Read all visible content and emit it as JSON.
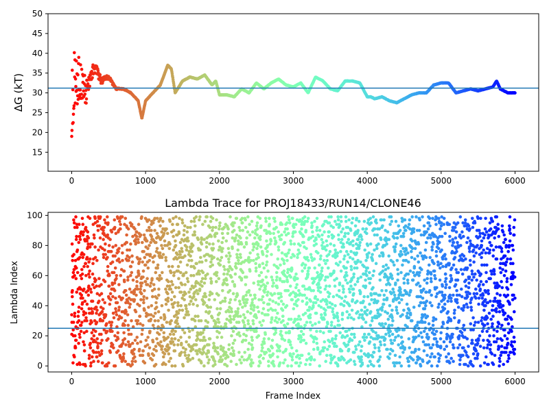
{
  "chart_data": [
    {
      "type": "scatter",
      "title": "",
      "xlabel": "",
      "ylabel": "ΔG (kT)",
      "xlim": [
        -320,
        6320
      ],
      "ylim": [
        10.2,
        50.0
      ],
      "xticks": [
        0,
        1000,
        2000,
        3000,
        4000,
        5000,
        6000
      ],
      "yticks": [
        15,
        20,
        25,
        30,
        35,
        40,
        45,
        50
      ],
      "reference_line": 31.2,
      "colormap": "rainbow (early frames red, late frames violet)",
      "grid": false,
      "series": [
        {
          "x": [
            0,
            100,
            200,
            300,
            400,
            500,
            600,
            700,
            800,
            900,
            950,
            1000,
            1100,
            1200,
            1300,
            1350,
            1400,
            1500,
            1600,
            1700,
            1800,
            1900,
            1950,
            2000,
            2100,
            2200,
            2300,
            2400,
            2500,
            2600,
            2700,
            2800,
            2900,
            3000,
            3100,
            3200,
            3300,
            3400,
            3500,
            3600,
            3700,
            3800,
            3900,
            4000,
            4050,
            4100,
            4200,
            4300,
            4400,
            4500,
            4600,
            4700,
            4800,
            4900,
            5000,
            5100,
            5200,
            5300,
            5400,
            5500,
            5600,
            5700,
            5750,
            5800,
            5900,
            6000
          ],
          "values": [
            30,
            34,
            30,
            37,
            33,
            34,
            31,
            31,
            30,
            28,
            23.5,
            28,
            30,
            32,
            37,
            36,
            30,
            33,
            34,
            33.5,
            34.5,
            32,
            33,
            29.5,
            29.5,
            29,
            31,
            30,
            32.5,
            31,
            32.5,
            33.5,
            32,
            31.5,
            32.5,
            30,
            34,
            33,
            31,
            30.5,
            33,
            33,
            32.5,
            29,
            29,
            28.5,
            29,
            28,
            27.5,
            28.5,
            29.5,
            30,
            30,
            32,
            32.5,
            32.5,
            30,
            30.5,
            31,
            30.5,
            31,
            31.5,
            33,
            31,
            30,
            30
          ]
        }
      ]
    },
    {
      "type": "scatter",
      "title": "Lambda Trace for PROJ18433/RUN14/CLONE46",
      "xlabel": "Frame Index",
      "ylabel": "Lambda Index",
      "xlim": [
        -320,
        6320
      ],
      "ylim": [
        -4,
        102
      ],
      "xticks": [
        0,
        1000,
        2000,
        3000,
        4000,
        5000,
        6000
      ],
      "yticks": [
        0,
        20,
        40,
        60,
        80,
        100
      ],
      "reference_line": 25,
      "colormap": "rainbow (early frames red, late frames violet)",
      "grid": false,
      "series": [
        {
          "points": "about 6000 frames, each a lambda index between 0 and 99, sampled roughly uniformly"
        }
      ]
    }
  ]
}
